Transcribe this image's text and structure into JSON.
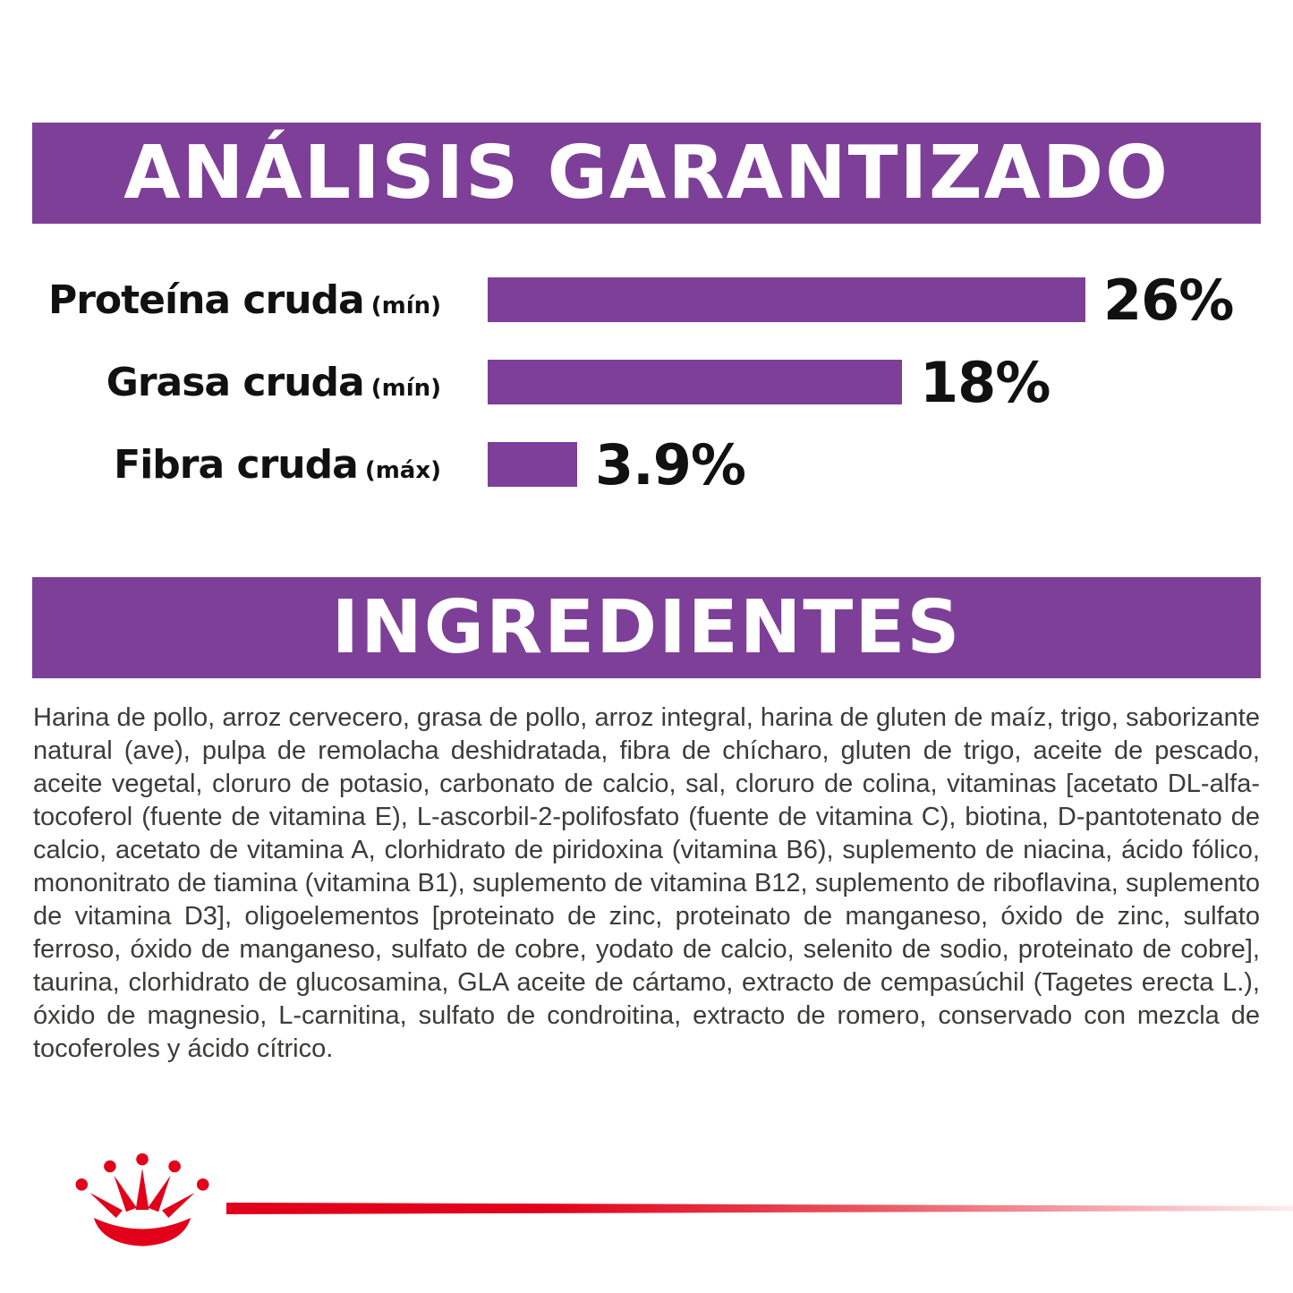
{
  "colors": {
    "purple": "#7d3f98",
    "red": "#e2001a",
    "text_black": "#111111",
    "body_text": "#3b3b39"
  },
  "analysis": {
    "title": "ANÁLISIS GARANTIZADO",
    "rows": [
      {
        "label": "Proteína cruda",
        "qualifier": "(mín)",
        "value": 26,
        "value_text": "26%"
      },
      {
        "label": "Grasa cruda",
        "qualifier": "(mín)",
        "value": 18,
        "value_text": "18%"
      },
      {
        "label": "Fibra cruda",
        "qualifier": "(máx)",
        "value": 3.9,
        "value_text": "3.9%"
      }
    ]
  },
  "chart_data": {
    "type": "bar",
    "orientation": "horizontal",
    "title": "ANÁLISIS GARANTIZADO",
    "categories": [
      "Proteína cruda (mín)",
      "Grasa cruda (mín)",
      "Fibra cruda (máx)"
    ],
    "values": [
      26,
      18,
      3.9
    ],
    "value_labels": [
      "26%",
      "18%",
      "3.9%"
    ],
    "bar_color": "#7d3f98",
    "xlim": [
      0,
      26
    ],
    "grid": false,
    "legend": "none",
    "value_label_position": "right-of-bar"
  },
  "ingredients": {
    "title": "INGREDIENTES",
    "body": "Harina de pollo, arroz cervecero, grasa de pollo, arroz integral, harina de gluten de maíz, trigo, saborizante natural (ave), pulpa de remolacha deshidratada, fibra de chícharo, gluten de trigo, aceite de pescado, aceite vegetal, cloruro de potasio, carbonato de calcio, sal, cloruro de colina, vitaminas [acetato DL-alfa-tocoferol (fuente de vitamina E), L-ascorbil-2-polifosfato (fuente de vitamina C), biotina, D-pantotenato de calcio, acetato de vitamina A, clorhidrato de piridoxina (vitamina B6), suplemento de niacina, ácido fólico, mononitrato de tiamina (vitamina B1), suplemento de vitamina B12, suplemento de riboflavina, suplemento de vitamina D3], oligoelementos [proteinato de zinc, proteinato de manganeso, óxido de zinc, sulfato ferroso, óxido de manganeso, sulfato de cobre, yodato de calcio, selenito de sodio, proteinato de cobre], taurina, clorhidrato de glucosamina, GLA aceite de cártamo, extracto de cempasúchil (Tagetes erecta L.), óxido de magnesio, L-carnitina, sulfato de condroitina, extracto de romero, conservado con mezcla de tocoferoles y ácido cítrico."
  },
  "footer": {
    "logo": "royal-canin-crown",
    "accent_line_color": "#e2001a"
  }
}
